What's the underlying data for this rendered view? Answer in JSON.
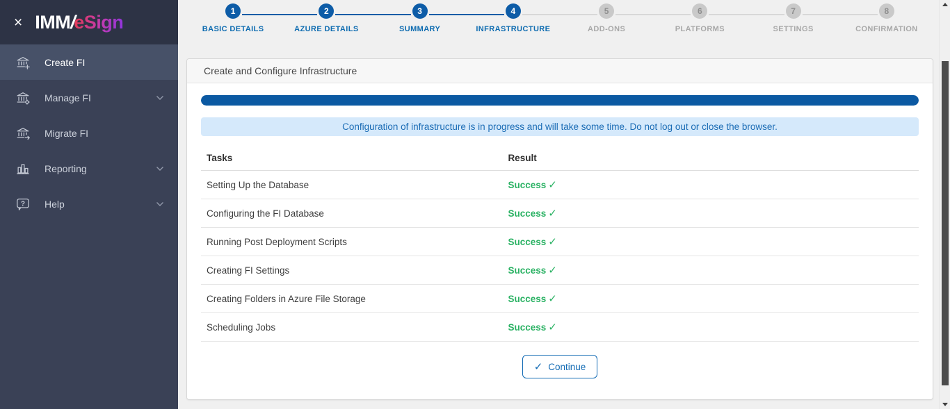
{
  "colors": {
    "accent_blue": "#0d5ca7",
    "progress_blue": "#0b59a2",
    "success_green": "#2bb264",
    "alert_bg": "#d5e9fb",
    "alert_text": "#1b6cb5",
    "sidebar_bg": "#3a4156",
    "sidebar_logo_bg": "#2d3345",
    "sidebar_active_bg": "#475168",
    "logo_gradient_start": "#e73a4e",
    "logo_gradient_end": "#8e35e0"
  },
  "sidebar": {
    "close_icon": "×",
    "logo": {
      "imm": "IMM",
      "slash": "/",
      "esign": "eSign"
    },
    "items": [
      {
        "label": "Create FI",
        "icon": "bank-plus-icon",
        "active": true,
        "chevron": false
      },
      {
        "label": "Manage FI",
        "icon": "bank-gear-icon",
        "active": false,
        "chevron": true
      },
      {
        "label": "Migrate FI",
        "icon": "bank-arrow-icon",
        "active": false,
        "chevron": false
      },
      {
        "label": "Reporting",
        "icon": "bar-chart-icon",
        "active": false,
        "chevron": true
      },
      {
        "label": "Help",
        "icon": "help-icon",
        "active": false,
        "chevron": true
      }
    ]
  },
  "stepper": {
    "steps": [
      {
        "number": "1",
        "label": "BASIC DETAILS",
        "state": "completed"
      },
      {
        "number": "2",
        "label": "AZURE DETAILS",
        "state": "completed"
      },
      {
        "number": "3",
        "label": "SUMMARY",
        "state": "completed"
      },
      {
        "number": "4",
        "label": "INFRASTRUCTURE",
        "state": "current"
      },
      {
        "number": "5",
        "label": "ADD-ONS",
        "state": "pending"
      },
      {
        "number": "6",
        "label": "PLATFORMS",
        "state": "pending"
      },
      {
        "number": "7",
        "label": "SETTINGS",
        "state": "pending"
      },
      {
        "number": "8",
        "label": "CONFIRMATION",
        "state": "pending"
      }
    ]
  },
  "panel": {
    "title": "Create and Configure Infrastructure",
    "progress_percent": 100,
    "alert": "Configuration of infrastructure is in progress and will take some time. Do not log out or close the browser.",
    "table": {
      "headers": [
        "Tasks",
        "Result"
      ],
      "check_icon": "✓",
      "rows": [
        {
          "task": "Setting Up the Database",
          "result": "Success"
        },
        {
          "task": "Configuring the FI Database",
          "result": "Success"
        },
        {
          "task": "Running Post Deployment Scripts",
          "result": "Success"
        },
        {
          "task": "Creating FI Settings",
          "result": "Success"
        },
        {
          "task": "Creating Folders in Azure File Storage",
          "result": "Success"
        },
        {
          "task": "Scheduling Jobs",
          "result": "Success"
        }
      ]
    },
    "continue_button": {
      "check_icon": "✓",
      "label": "Continue"
    }
  }
}
